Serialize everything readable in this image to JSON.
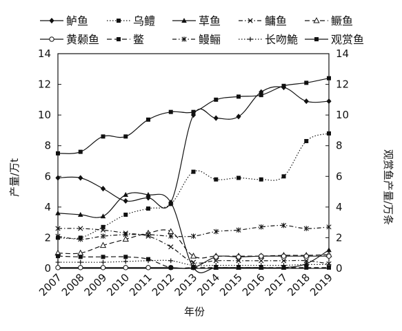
{
  "chart_data": {
    "type": "line",
    "title": "",
    "xlabel": "年份",
    "ylabel": "产量/万t",
    "ylabel_right": "观赏鱼产量/万条",
    "x": [
      "2007",
      "2008",
      "2009",
      "2010",
      "2011",
      "2012",
      "2013",
      "2014",
      "2015",
      "2016",
      "2017",
      "2018",
      "2019"
    ],
    "ylim": [
      0,
      14
    ],
    "ylim_right": [
      0,
      14
    ],
    "yticks": [
      "0",
      "2",
      "4",
      "6",
      "8",
      "10",
      "12",
      "14"
    ],
    "legend_position": "top",
    "grid": false,
    "series": [
      {
        "name": "鲈鱼",
        "axis": "left",
        "marker": "diamond",
        "dash": "solid",
        "values": [
          5.9,
          5.9,
          5.2,
          4.4,
          4.6,
          4.3,
          10.0,
          9.8,
          9.9,
          11.5,
          11.8,
          10.9,
          10.9
        ]
      },
      {
        "name": "乌鳢",
        "axis": "left",
        "marker": "square",
        "dash": "dotted",
        "values": [
          2.0,
          2.0,
          2.7,
          3.5,
          3.9,
          4.2,
          6.3,
          5.8,
          5.9,
          5.8,
          6.0,
          8.3,
          8.8
        ]
      },
      {
        "name": "草鱼",
        "axis": "left",
        "marker": "triangle",
        "dash": "solid",
        "values": [
          3.6,
          3.5,
          3.4,
          4.8,
          4.8,
          4.3,
          0.05,
          0.05,
          0.05,
          0.05,
          0.05,
          0.3,
          1.2
        ]
      },
      {
        "name": "鳙鱼",
        "axis": "left",
        "marker": "x",
        "dash": "dashdot",
        "values": [
          2.6,
          2.6,
          2.5,
          2.3,
          2.1,
          1.4,
          0.4,
          0.5,
          0.5,
          0.5,
          0.5,
          0.5,
          0.3
        ]
      },
      {
        "name": "鳜鱼",
        "axis": "left",
        "marker": "triangle-open",
        "dash": "longdash",
        "values": [
          1.0,
          1.0,
          1.5,
          1.9,
          2.3,
          2.4,
          0.8,
          0.8,
          0.8,
          0.8,
          0.85,
          0.85,
          0.9
        ]
      },
      {
        "name": "黄颡鱼",
        "axis": "left",
        "marker": "circle-open",
        "dash": "solid",
        "values": [
          0.05,
          0.05,
          0.05,
          0.05,
          0.05,
          0.05,
          0.05,
          0.75,
          0.75,
          0.8,
          0.8,
          0.8,
          0.8
        ]
      },
      {
        "name": "鳖",
        "axis": "left",
        "marker": "square",
        "dash": "longdash",
        "values": [
          0.8,
          0.75,
          0.75,
          0.75,
          0.6,
          0.05,
          0.05,
          0.05,
          0.05,
          0.05,
          0.05,
          0.05,
          0.05
        ]
      },
      {
        "name": "鳗鲡",
        "axis": "left",
        "marker": "asterisk",
        "dash": "dashdot",
        "values": [
          2.1,
          1.9,
          2.1,
          2.2,
          2.2,
          2.1,
          2.1,
          2.4,
          2.5,
          2.7,
          2.8,
          2.6,
          2.7
        ]
      },
      {
        "name": "长吻鮠",
        "axis": "left",
        "marker": "plus",
        "dash": "dotted",
        "values": [
          0.4,
          0.4,
          0.4,
          0.45,
          0.5,
          0.5,
          0.2,
          0.2,
          0.2,
          0.2,
          0.2,
          0.25,
          0.25
        ]
      },
      {
        "name": "观赏鱼",
        "axis": "right",
        "marker": "square",
        "dash": "solid",
        "values": [
          7.5,
          7.6,
          8.6,
          8.6,
          9.7,
          10.2,
          10.2,
          11.0,
          11.2,
          11.3,
          11.9,
          12.1,
          12.4
        ]
      }
    ]
  }
}
